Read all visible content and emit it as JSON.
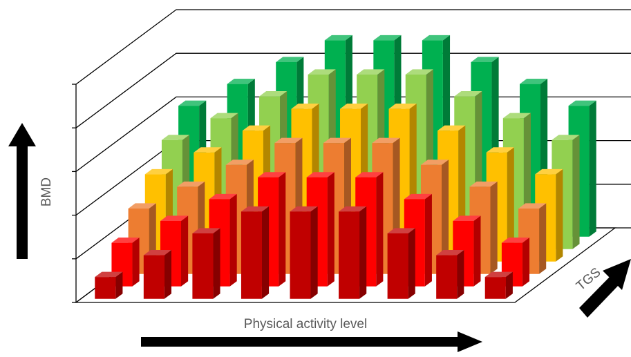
{
  "chart_data": {
    "type": "bar3d",
    "x_label": "Physical activity level",
    "y_label": "BMD",
    "z_label": "TGS",
    "categories": [
      null,
      null,
      null,
      null,
      null,
      null,
      null,
      null,
      null
    ],
    "series": [
      {
        "color": "#c00000",
        "values": [
          0.5,
          1,
          1.5,
          2,
          2,
          2,
          1.5,
          1,
          0.5
        ]
      },
      {
        "color": "#ff0000",
        "values": [
          1,
          1.5,
          2,
          2.5,
          2.5,
          2.5,
          2,
          1.5,
          1
        ]
      },
      {
        "color": "#ed7d31",
        "values": [
          1.5,
          2,
          2.5,
          3,
          3,
          3,
          2.5,
          2,
          1.5
        ]
      },
      {
        "color": "#ffc000",
        "values": [
          2,
          2.5,
          3,
          3.5,
          3.5,
          3.5,
          3,
          2.5,
          2
        ]
      },
      {
        "color": "#92d050",
        "values": [
          2.5,
          3,
          3.5,
          4,
          4,
          4,
          3.5,
          3,
          2.5
        ]
      },
      {
        "color": "#00b050",
        "values": [
          3,
          3.5,
          4,
          4.5,
          4.5,
          4.5,
          4,
          3.5,
          3
        ]
      }
    ],
    "ylim": [
      0,
      5
    ],
    "yticks": [
      0,
      1,
      2,
      3,
      4,
      5
    ],
    "grid": true
  }
}
